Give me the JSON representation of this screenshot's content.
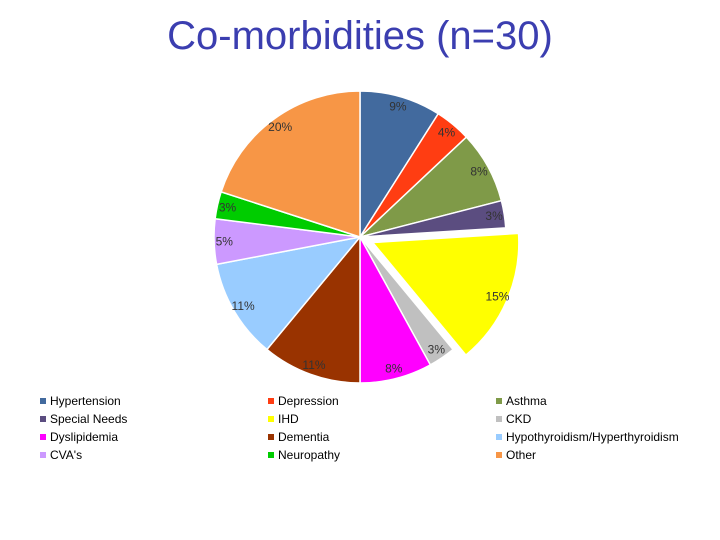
{
  "chart_data": {
    "type": "pie",
    "title": "Co-morbidities (n=30)",
    "legend_position": "bottom",
    "slices": [
      {
        "name": "Hypertension",
        "label": "9%",
        "value": 9,
        "color": "#426a9e",
        "exploded": false
      },
      {
        "name": "Depression",
        "label": "4%",
        "value": 4,
        "color": "#ff3d12",
        "exploded": false
      },
      {
        "name": "Asthma",
        "label": "8%",
        "value": 8,
        "color": "#7f9a48",
        "exploded": false
      },
      {
        "name": "Special Needs",
        "label": "3%",
        "value": 3,
        "color": "#5b4d80",
        "exploded": false
      },
      {
        "name": "IHD",
        "label": "15%",
        "value": 15,
        "color": "#ffff00",
        "exploded": true
      },
      {
        "name": "CKD",
        "label": "3%",
        "value": 3,
        "color": "#c0c0c0",
        "exploded": false
      },
      {
        "name": "Dyslipidemia",
        "label": "8%",
        "value": 8,
        "color": "#ff00ff",
        "exploded": false
      },
      {
        "name": "Dementia",
        "label": "11%",
        "value": 11,
        "color": "#993300",
        "exploded": false
      },
      {
        "name": "Hypothyroidism/Hyperthyroidism",
        "label": "11%",
        "value": 11,
        "color": "#99ccff",
        "exploded": false
      },
      {
        "name": "CVA's",
        "label": "5%",
        "value": 5,
        "color": "#cc99ff",
        "exploded": false
      },
      {
        "name": "Neuropathy",
        "label": "3%",
        "value": 3,
        "color": "#00cc00",
        "exploded": false
      },
      {
        "name": "Other",
        "label": "20%",
        "value": 20,
        "color": "#f79646",
        "exploded": false
      }
    ],
    "legend_order": [
      "Hypertension",
      "Depression",
      "Asthma",
      "Special Needs",
      "IHD",
      "CKD",
      "Dyslipidemia",
      "Dementia",
      "Hypothyroidism/Hyperthyroidism",
      "CVA's",
      "Neuropathy",
      "Other"
    ]
  }
}
